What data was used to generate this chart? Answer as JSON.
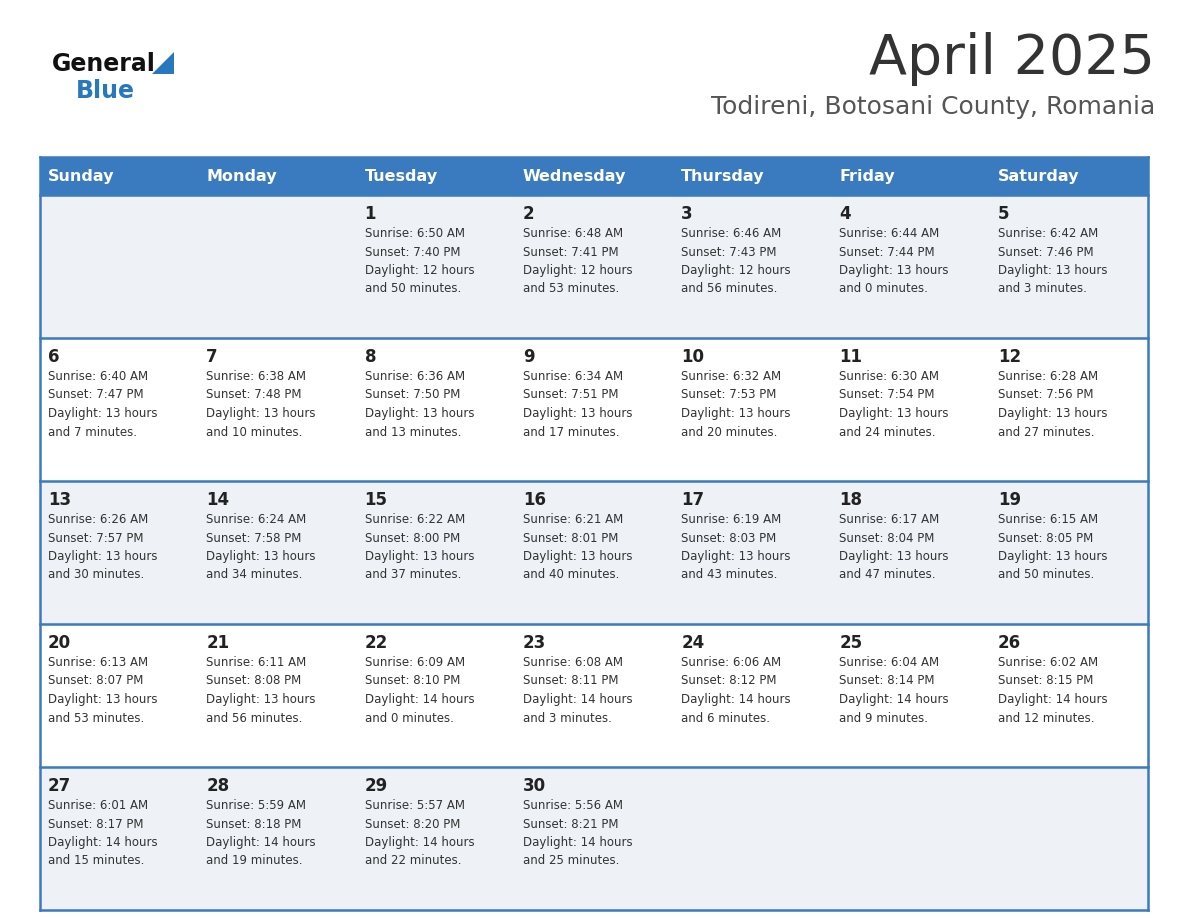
{
  "title": "April 2025",
  "subtitle": "Todireni, Botosani County, Romania",
  "days_of_week": [
    "Sunday",
    "Monday",
    "Tuesday",
    "Wednesday",
    "Thursday",
    "Friday",
    "Saturday"
  ],
  "header_bg": "#3a7abf",
  "header_text": "#ffffff",
  "row_bg_odd": "#eef2f7",
  "row_bg_even": "#ffffff",
  "cell_border": "#3a7abf",
  "cell_border_thin": "#aec6e0",
  "day_number_color": "#222222",
  "info_text_color": "#333333",
  "title_color": "#333333",
  "subtitle_color": "#555555",
  "logo_general_color": "#111111",
  "logo_blue_color": "#2878be",
  "weeks": [
    [
      {
        "day": "",
        "sunrise": "",
        "sunset": "",
        "daylight": ""
      },
      {
        "day": "",
        "sunrise": "",
        "sunset": "",
        "daylight": ""
      },
      {
        "day": "1",
        "sunrise": "Sunrise: 6:50 AM",
        "sunset": "Sunset: 7:40 PM",
        "daylight": "Daylight: 12 hours\nand 50 minutes."
      },
      {
        "day": "2",
        "sunrise": "Sunrise: 6:48 AM",
        "sunset": "Sunset: 7:41 PM",
        "daylight": "Daylight: 12 hours\nand 53 minutes."
      },
      {
        "day": "3",
        "sunrise": "Sunrise: 6:46 AM",
        "sunset": "Sunset: 7:43 PM",
        "daylight": "Daylight: 12 hours\nand 56 minutes."
      },
      {
        "day": "4",
        "sunrise": "Sunrise: 6:44 AM",
        "sunset": "Sunset: 7:44 PM",
        "daylight": "Daylight: 13 hours\nand 0 minutes."
      },
      {
        "day": "5",
        "sunrise": "Sunrise: 6:42 AM",
        "sunset": "Sunset: 7:46 PM",
        "daylight": "Daylight: 13 hours\nand 3 minutes."
      }
    ],
    [
      {
        "day": "6",
        "sunrise": "Sunrise: 6:40 AM",
        "sunset": "Sunset: 7:47 PM",
        "daylight": "Daylight: 13 hours\nand 7 minutes."
      },
      {
        "day": "7",
        "sunrise": "Sunrise: 6:38 AM",
        "sunset": "Sunset: 7:48 PM",
        "daylight": "Daylight: 13 hours\nand 10 minutes."
      },
      {
        "day": "8",
        "sunrise": "Sunrise: 6:36 AM",
        "sunset": "Sunset: 7:50 PM",
        "daylight": "Daylight: 13 hours\nand 13 minutes."
      },
      {
        "day": "9",
        "sunrise": "Sunrise: 6:34 AM",
        "sunset": "Sunset: 7:51 PM",
        "daylight": "Daylight: 13 hours\nand 17 minutes."
      },
      {
        "day": "10",
        "sunrise": "Sunrise: 6:32 AM",
        "sunset": "Sunset: 7:53 PM",
        "daylight": "Daylight: 13 hours\nand 20 minutes."
      },
      {
        "day": "11",
        "sunrise": "Sunrise: 6:30 AM",
        "sunset": "Sunset: 7:54 PM",
        "daylight": "Daylight: 13 hours\nand 24 minutes."
      },
      {
        "day": "12",
        "sunrise": "Sunrise: 6:28 AM",
        "sunset": "Sunset: 7:56 PM",
        "daylight": "Daylight: 13 hours\nand 27 minutes."
      }
    ],
    [
      {
        "day": "13",
        "sunrise": "Sunrise: 6:26 AM",
        "sunset": "Sunset: 7:57 PM",
        "daylight": "Daylight: 13 hours\nand 30 minutes."
      },
      {
        "day": "14",
        "sunrise": "Sunrise: 6:24 AM",
        "sunset": "Sunset: 7:58 PM",
        "daylight": "Daylight: 13 hours\nand 34 minutes."
      },
      {
        "day": "15",
        "sunrise": "Sunrise: 6:22 AM",
        "sunset": "Sunset: 8:00 PM",
        "daylight": "Daylight: 13 hours\nand 37 minutes."
      },
      {
        "day": "16",
        "sunrise": "Sunrise: 6:21 AM",
        "sunset": "Sunset: 8:01 PM",
        "daylight": "Daylight: 13 hours\nand 40 minutes."
      },
      {
        "day": "17",
        "sunrise": "Sunrise: 6:19 AM",
        "sunset": "Sunset: 8:03 PM",
        "daylight": "Daylight: 13 hours\nand 43 minutes."
      },
      {
        "day": "18",
        "sunrise": "Sunrise: 6:17 AM",
        "sunset": "Sunset: 8:04 PM",
        "daylight": "Daylight: 13 hours\nand 47 minutes."
      },
      {
        "day": "19",
        "sunrise": "Sunrise: 6:15 AM",
        "sunset": "Sunset: 8:05 PM",
        "daylight": "Daylight: 13 hours\nand 50 minutes."
      }
    ],
    [
      {
        "day": "20",
        "sunrise": "Sunrise: 6:13 AM",
        "sunset": "Sunset: 8:07 PM",
        "daylight": "Daylight: 13 hours\nand 53 minutes."
      },
      {
        "day": "21",
        "sunrise": "Sunrise: 6:11 AM",
        "sunset": "Sunset: 8:08 PM",
        "daylight": "Daylight: 13 hours\nand 56 minutes."
      },
      {
        "day": "22",
        "sunrise": "Sunrise: 6:09 AM",
        "sunset": "Sunset: 8:10 PM",
        "daylight": "Daylight: 14 hours\nand 0 minutes."
      },
      {
        "day": "23",
        "sunrise": "Sunrise: 6:08 AM",
        "sunset": "Sunset: 8:11 PM",
        "daylight": "Daylight: 14 hours\nand 3 minutes."
      },
      {
        "day": "24",
        "sunrise": "Sunrise: 6:06 AM",
        "sunset": "Sunset: 8:12 PM",
        "daylight": "Daylight: 14 hours\nand 6 minutes."
      },
      {
        "day": "25",
        "sunrise": "Sunrise: 6:04 AM",
        "sunset": "Sunset: 8:14 PM",
        "daylight": "Daylight: 14 hours\nand 9 minutes."
      },
      {
        "day": "26",
        "sunrise": "Sunrise: 6:02 AM",
        "sunset": "Sunset: 8:15 PM",
        "daylight": "Daylight: 14 hours\nand 12 minutes."
      }
    ],
    [
      {
        "day": "27",
        "sunrise": "Sunrise: 6:01 AM",
        "sunset": "Sunset: 8:17 PM",
        "daylight": "Daylight: 14 hours\nand 15 minutes."
      },
      {
        "day": "28",
        "sunrise": "Sunrise: 5:59 AM",
        "sunset": "Sunset: 8:18 PM",
        "daylight": "Daylight: 14 hours\nand 19 minutes."
      },
      {
        "day": "29",
        "sunrise": "Sunrise: 5:57 AM",
        "sunset": "Sunset: 8:20 PM",
        "daylight": "Daylight: 14 hours\nand 22 minutes."
      },
      {
        "day": "30",
        "sunrise": "Sunrise: 5:56 AM",
        "sunset": "Sunset: 8:21 PM",
        "daylight": "Daylight: 14 hours\nand 25 minutes."
      },
      {
        "day": "",
        "sunrise": "",
        "sunset": "",
        "daylight": ""
      },
      {
        "day": "",
        "sunrise": "",
        "sunset": "",
        "daylight": ""
      },
      {
        "day": "",
        "sunrise": "",
        "sunset": "",
        "daylight": ""
      }
    ]
  ]
}
